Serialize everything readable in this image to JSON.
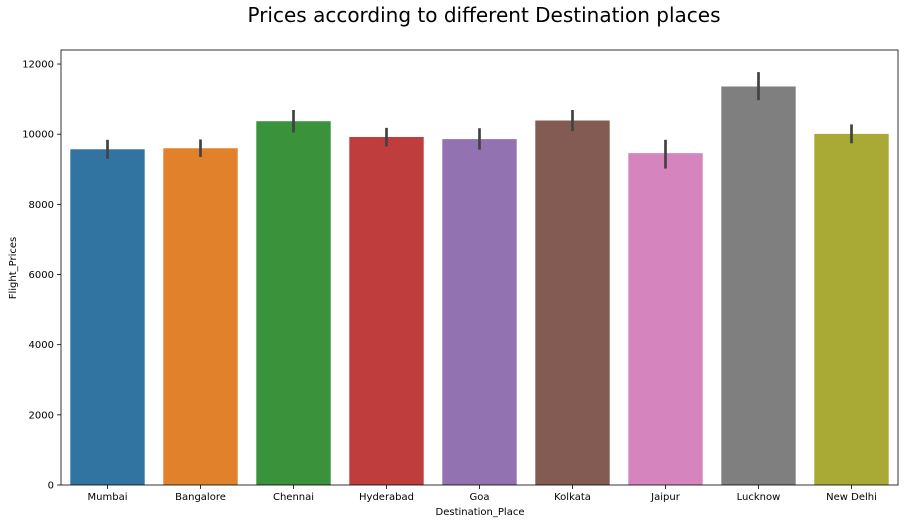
{
  "chart_data": {
    "type": "bar",
    "title": "Prices according to different Destination places",
    "xlabel": "Destination_Place",
    "ylabel": "Flight_Prices",
    "categories": [
      "Mumbai",
      "Bangalore",
      "Chennai",
      "Hyderabad",
      "Goa",
      "Kolkata",
      "Jaipur",
      "Lucknow",
      "New Delhi"
    ],
    "values": [
      9570,
      9600,
      10370,
      9920,
      9860,
      10390,
      9460,
      11360,
      10010
    ],
    "error_low": [
      9300,
      9350,
      10050,
      9650,
      9560,
      10090,
      9020,
      10970,
      9740
    ],
    "error_high": [
      9840,
      9850,
      10690,
      10180,
      10170,
      10690,
      9840,
      11770,
      10280
    ],
    "colors": [
      "#3274a1",
      "#e1812c",
      "#3a923a",
      "#c03d3e",
      "#9372b2",
      "#845b53",
      "#d684bd",
      "#7f7f7f",
      "#a9aa35"
    ],
    "error_color": "#424242",
    "ylim": [
      0,
      12400
    ],
    "yticks": [
      0,
      2000,
      4000,
      6000,
      8000,
      10000,
      12000
    ],
    "grid": false,
    "legend": "none"
  }
}
